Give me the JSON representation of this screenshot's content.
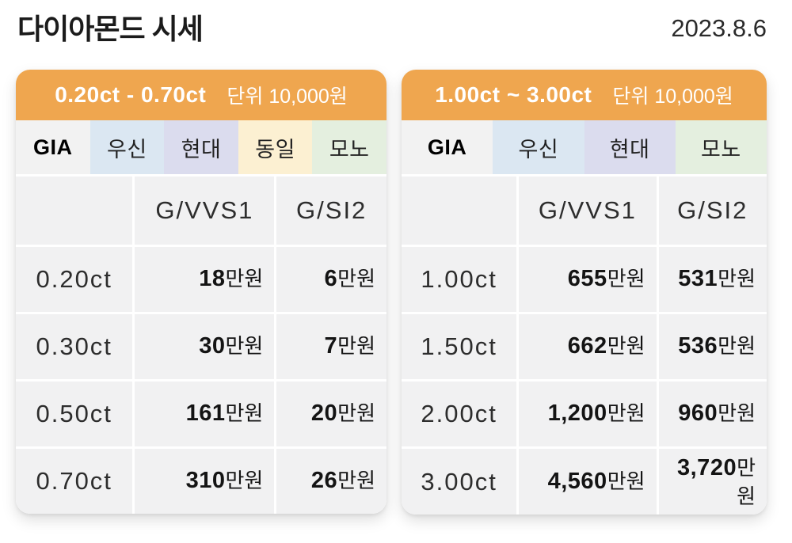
{
  "page": {
    "title": "다이아몬드 시세",
    "date": "2023.8.6"
  },
  "colors": {
    "header_orange": "#EFA64F",
    "cell_gray": "#f1f1f2",
    "tab_gia": "#f2f2f2",
    "tab_wooshin": "#dbe7f2",
    "tab_hyundai": "#dbdcee",
    "tab_dongil": "#fcf0d2",
    "tab_mono": "#e4efdf"
  },
  "cards": [
    {
      "header": {
        "range": "0.20ct - 0.70ct",
        "unit": "단위 10,000원"
      },
      "tabs": [
        {
          "label": "GIA",
          "color": "#f2f2f2"
        },
        {
          "label": "우신",
          "color": "#dbe7f2"
        },
        {
          "label": "현대",
          "color": "#dbdcee"
        },
        {
          "label": "동일",
          "color": "#fcf0d2"
        },
        {
          "label": "모노",
          "color": "#e4efdf"
        }
      ],
      "columns": {
        "c0": "",
        "c1": "G/VVS1",
        "c2": "G/SI2"
      },
      "rows": [
        {
          "label": "0.20ct",
          "vvs1_num": "18",
          "vvs1_unit": "만원",
          "si2_num": "6",
          "si2_unit": "만원"
        },
        {
          "label": "0.30ct",
          "vvs1_num": "30",
          "vvs1_unit": "만원",
          "si2_num": "7",
          "si2_unit": "만원"
        },
        {
          "label": "0.50ct",
          "vvs1_num": "161",
          "vvs1_unit": "만원",
          "si2_num": "20",
          "si2_unit": "만원"
        },
        {
          "label": "0.70ct",
          "vvs1_num": "310",
          "vvs1_unit": "만원",
          "si2_num": "26",
          "si2_unit": "만원"
        }
      ]
    },
    {
      "header": {
        "range": "1.00ct ~ 3.00ct",
        "unit": "단위 10,000원"
      },
      "tabs": [
        {
          "label": "GIA",
          "color": "#f2f2f2"
        },
        {
          "label": "우신",
          "color": "#dbe7f2"
        },
        {
          "label": "현대",
          "color": "#dbdcee"
        },
        {
          "label": "모노",
          "color": "#e4efdf"
        }
      ],
      "columns": {
        "c0": "",
        "c1": "G/VVS1",
        "c2": "G/SI2"
      },
      "rows": [
        {
          "label": "1.00ct",
          "vvs1_num": "655",
          "vvs1_unit": "만원",
          "si2_num": "531",
          "si2_unit": "만원"
        },
        {
          "label": "1.50ct",
          "vvs1_num": "662",
          "vvs1_unit": "만원",
          "si2_num": "536",
          "si2_unit": "만원"
        },
        {
          "label": "2.00ct",
          "vvs1_num": "1,200",
          "vvs1_unit": "만원",
          "si2_num": "960",
          "si2_unit": "만원"
        },
        {
          "label": "3.00ct",
          "vvs1_num": "4,560",
          "vvs1_unit": "만원",
          "si2_num": "3,720",
          "si2_unit": "만원"
        }
      ]
    }
  ]
}
